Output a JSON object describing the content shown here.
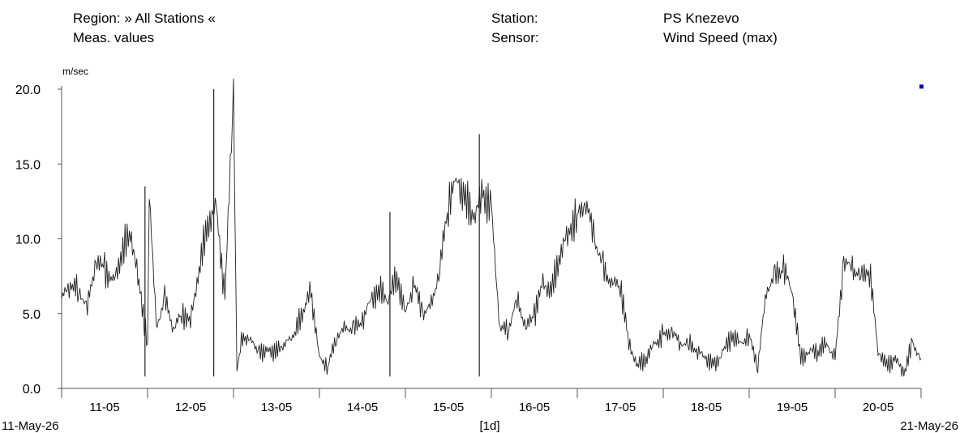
{
  "header": {
    "region_label": "Region: » All Stations «",
    "values_label": "Meas. values",
    "station_label": "Station:",
    "station_value": "PS Knezevo",
    "sensor_label": "Sensor:",
    "sensor_value": "Wind Speed (max)"
  },
  "chart_data": {
    "type": "line",
    "title": "",
    "ylabel": "m/sec",
    "xlabel": "[1d]",
    "ylim": [
      0,
      20
    ],
    "y_ticks": [
      "0.0",
      "5.0",
      "10.0",
      "15.0",
      "20.0"
    ],
    "x_ticks": [
      "11-05",
      "12-05",
      "13-05",
      "14-05",
      "15-05",
      "16-05",
      "17-05",
      "18-05",
      "19-05",
      "20-05"
    ],
    "x_start_label": "11-May-26",
    "x_end_label": "21-May-26",
    "x_range_days": [
      0,
      10
    ],
    "grid": false,
    "line_color": "#222222",
    "marker_color": "#0000cc",
    "series": [
      {
        "x_days": [
          0,
          0.1,
          0.2,
          0.3,
          0.4,
          0.5,
          0.6,
          0.7,
          0.8,
          0.9,
          1.0,
          1.02,
          1.1,
          1.2,
          1.3,
          1.4,
          1.5,
          1.6,
          1.7,
          1.8,
          1.9,
          2.0,
          2.04,
          2.08,
          2.15,
          2.3,
          2.5,
          2.7,
          2.9,
          3.0,
          3.1,
          3.2,
          3.3,
          3.4,
          3.5,
          3.6,
          3.7,
          3.8,
          3.9,
          4.0,
          4.1,
          4.2,
          4.3,
          4.4,
          4.5,
          4.6,
          4.7,
          4.8,
          4.9,
          5.0,
          5.1,
          5.2,
          5.3,
          5.4,
          5.5,
          5.6,
          5.7,
          5.8,
          5.9,
          6.0,
          6.1,
          6.2,
          6.3,
          6.4,
          6.5,
          6.6,
          6.7,
          6.8,
          6.9,
          7.0,
          7.1,
          7.2,
          7.3,
          7.4,
          7.5,
          7.6,
          7.7,
          7.8,
          7.9,
          8.0,
          8.1,
          8.2,
          8.3,
          8.4,
          8.5,
          8.6,
          8.7,
          8.8,
          8.9,
          9.0,
          9.1,
          9.2,
          9.3,
          9.4,
          9.5,
          9.6,
          9.7,
          9.8,
          9.9,
          10.0
        ],
        "values": [
          6.0,
          7.0,
          6.5,
          5.5,
          8.5,
          8.0,
          7.0,
          9.0,
          10.5,
          7.0,
          3.0,
          13.5,
          4.0,
          6.0,
          4.0,
          5.0,
          4.5,
          8.0,
          11.0,
          12.0,
          6.0,
          20.0,
          1.0,
          3.0,
          3.5,
          2.5,
          2.5,
          3.5,
          6.5,
          2.0,
          1.5,
          3.5,
          4.0,
          4.0,
          4.5,
          6.0,
          6.5,
          6.0,
          7.5,
          5.0,
          7.0,
          5.0,
          5.5,
          8.0,
          12.5,
          14.0,
          12.5,
          11.5,
          13.0,
          12.0,
          4.0,
          4.0,
          6.0,
          4.0,
          5.0,
          7.0,
          6.5,
          9.0,
          10.5,
          11.5,
          12.5,
          10.0,
          8.0,
          7.0,
          7.0,
          3.0,
          1.5,
          2.0,
          3.0,
          3.5,
          3.8,
          3.0,
          3.0,
          2.5,
          2.0,
          1.5,
          2.5,
          3.5,
          3.0,
          3.5,
          1.5,
          6.5,
          7.5,
          8.0,
          6.5,
          2.0,
          2.5,
          2.5,
          3.0,
          2.0,
          8.5,
          8.0,
          7.5,
          8.0,
          2.5,
          1.5,
          2.0,
          1.0,
          3.0,
          2.0
        ]
      }
    ],
    "spikes": [
      {
        "x_days": 0.97,
        "value": 13.5
      },
      {
        "x_days": 1.77,
        "value": 20.0
      },
      {
        "x_days": 4.86,
        "value": 17.0
      },
      {
        "x_days": 3.82,
        "value": 11.8
      }
    ],
    "marker": {
      "x_days": 10.0,
      "value": 20.2
    }
  }
}
